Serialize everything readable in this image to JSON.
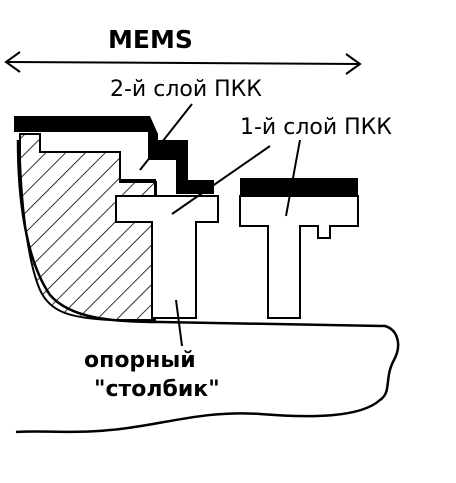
{
  "labels": {
    "mems": "MEMS",
    "layer2": "2-й слой ПКК",
    "layer1": "1-й слой ПКК",
    "post_line1": "опорный",
    "post_line2": "\"столбик\""
  },
  "colors": {
    "ink": "#000000",
    "background": "#ffffff"
  }
}
